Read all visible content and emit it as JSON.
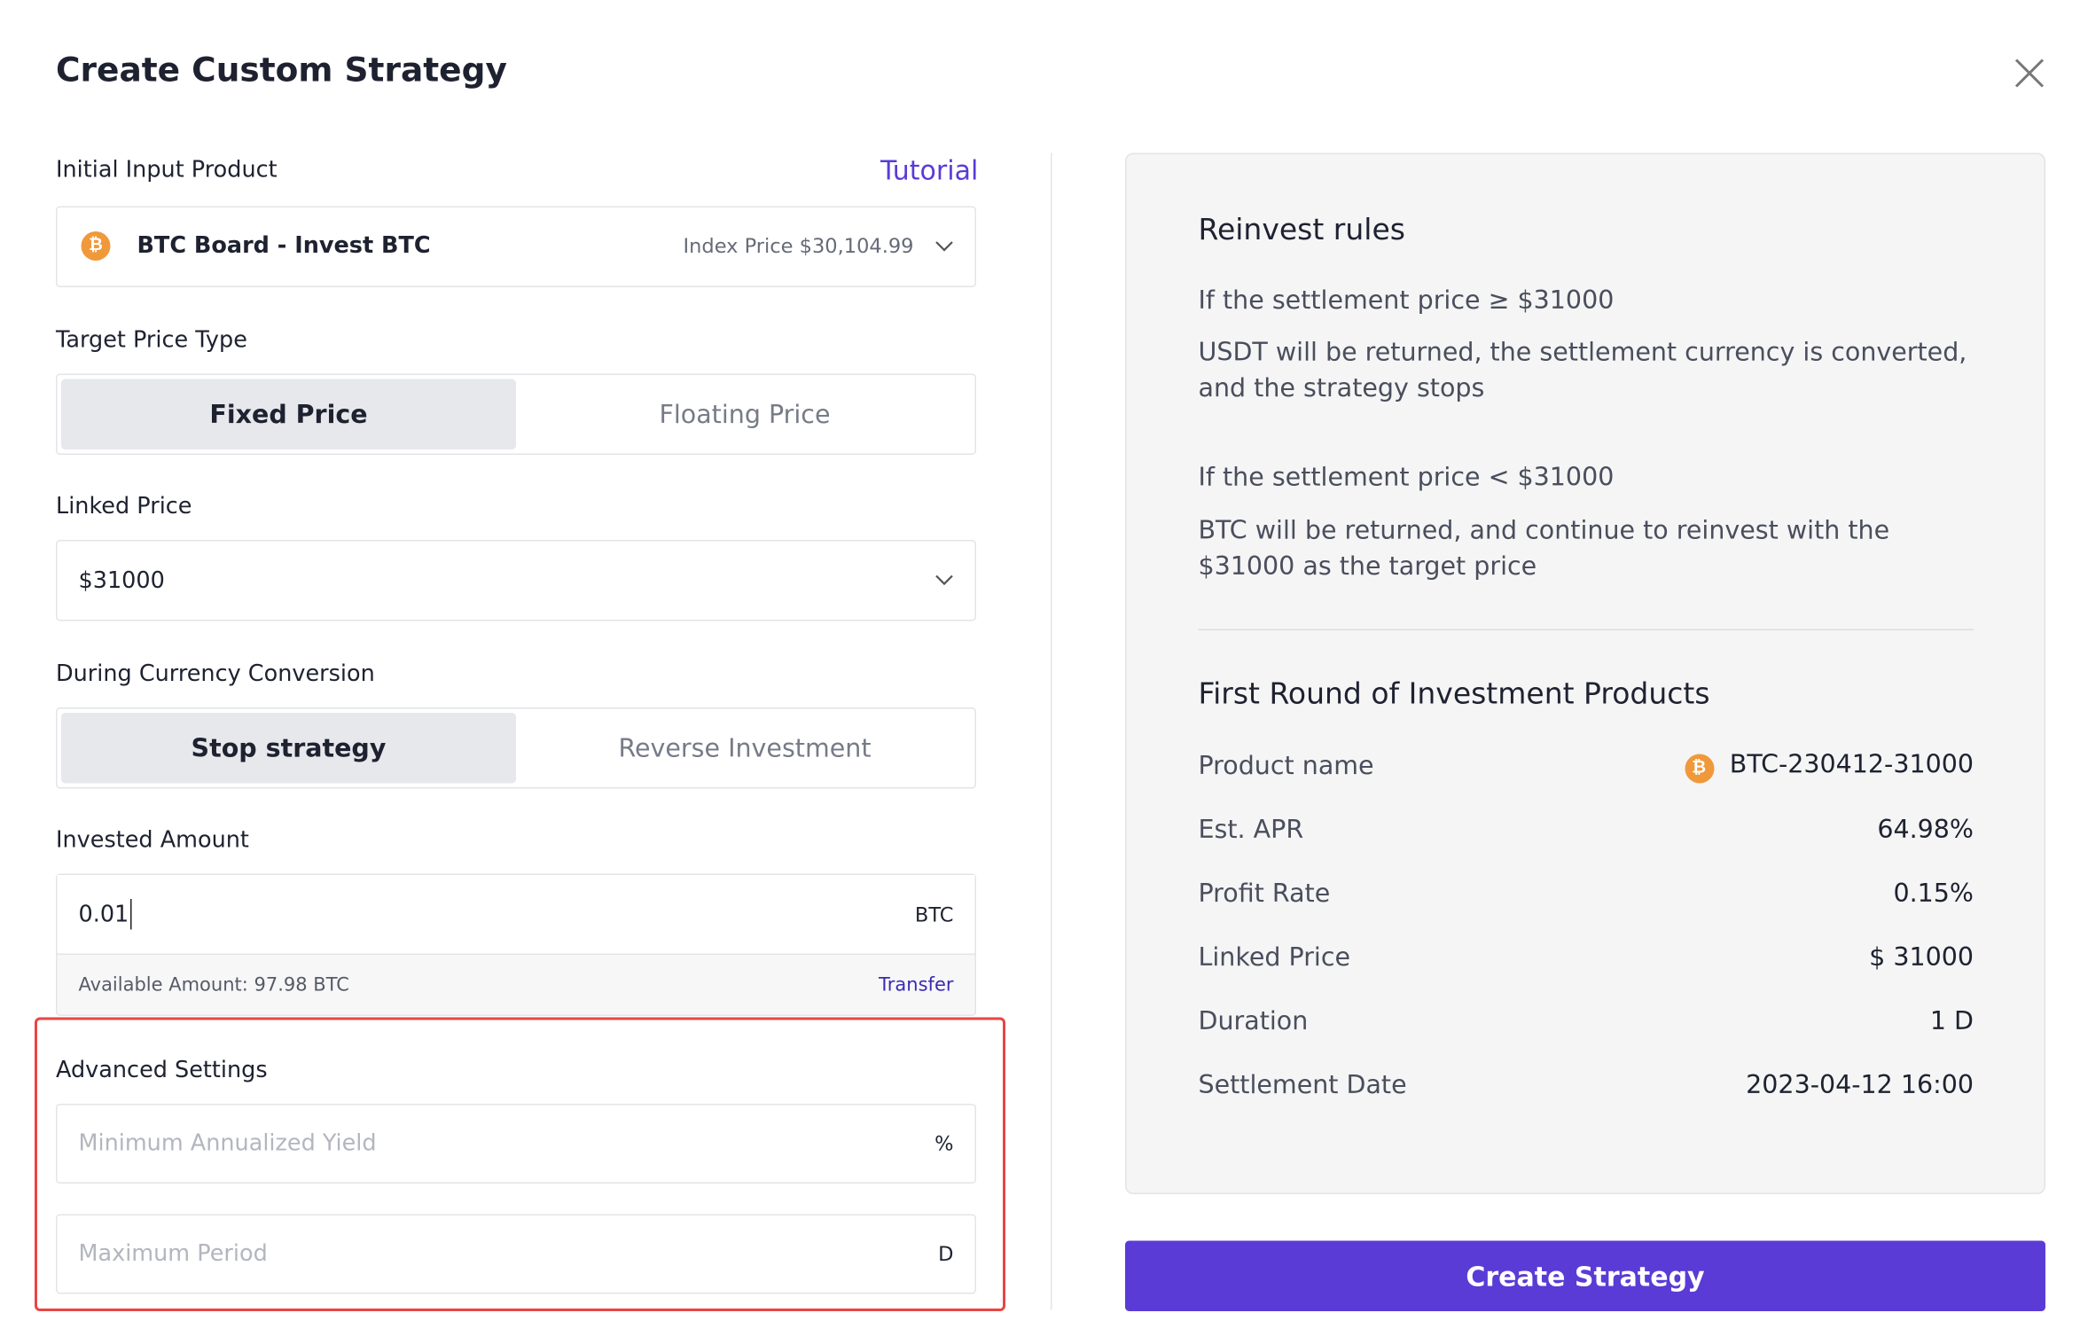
{
  "header": {
    "title": "Create Custom Strategy"
  },
  "form": {
    "initial_input_product": {
      "label": "Initial Input Product",
      "link": "Tutorial",
      "product": "BTC Board - Invest BTC",
      "index_price": "Index Price $30,104.99"
    },
    "target_price_type": {
      "label": "Target Price Type",
      "options": [
        "Fixed Price",
        "Floating Price"
      ]
    },
    "linked_price": {
      "label": "Linked Price",
      "value": "$31000"
    },
    "currency_conversion": {
      "label": "During Currency Conversion",
      "options": [
        "Stop strategy",
        "Reverse Investment"
      ]
    },
    "invested_amount": {
      "label": "Invested Amount",
      "value": "0.01",
      "unit": "BTC",
      "available": "Available Amount: 97.98 BTC",
      "transfer": "Transfer"
    },
    "advanced_settings": {
      "label": "Advanced Settings",
      "fields": [
        {
          "placeholder": "Minimum Annualized Yield",
          "unit": "%"
        },
        {
          "placeholder": "Maximum Period",
          "unit": "D"
        }
      ]
    }
  },
  "summary": {
    "title": "Reinvest rules",
    "rules": [
      {
        "condition": "If the settlement price ≥ $31000",
        "result": "USDT will be returned, the settlement currency is converted, and the strategy stops"
      },
      {
        "condition": "If the settlement price < $31000",
        "result": "BTC will be returned, and continue to reinvest with the $31000 as the target price"
      }
    ],
    "products_title": "First Round of Investment Products",
    "rows": [
      {
        "label": "Product name",
        "value": "BTC-230412-31000"
      },
      {
        "label": "Est. APR",
        "value": "64.98%"
      },
      {
        "label": "Profit Rate",
        "value": "0.15%"
      },
      {
        "label": "Linked Price",
        "value": "$ 31000"
      },
      {
        "label": "Duration",
        "value": "1 D"
      },
      {
        "label": "Settlement Date",
        "value": "2023-04-12 16:00"
      }
    ]
  },
  "actions": {
    "create": "Create Strategy"
  }
}
